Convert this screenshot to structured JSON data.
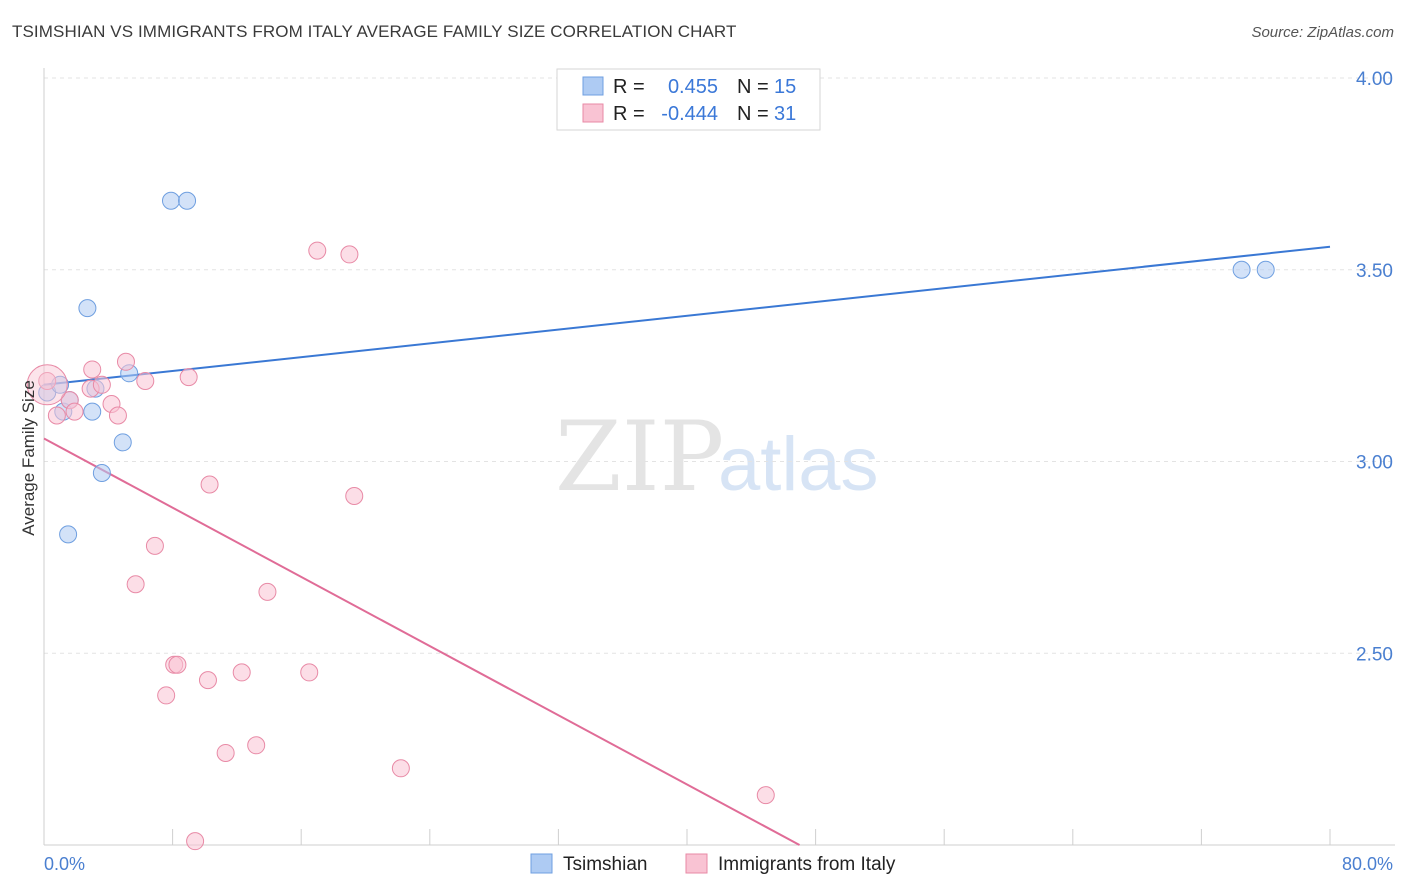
{
  "header": {
    "title": "TSIMSHIAN VS IMMIGRANTS FROM ITALY AVERAGE FAMILY SIZE CORRELATION CHART",
    "source": "Source: ZipAtlas.com"
  },
  "watermark": {
    "zip": "ZIP",
    "atlas": "atlas"
  },
  "legend_top": {
    "rows": [
      {
        "r_label": "R =",
        "r_value": "0.455",
        "n_label": "N =",
        "n_value": "15",
        "color": "#aecbf3",
        "border": "#6f9fe0"
      },
      {
        "r_label": "R =",
        "r_value": "-0.444",
        "n_label": "N =",
        "n_value": "31",
        "color": "#f9c3d3",
        "border": "#e88aa6"
      }
    ]
  },
  "chart_data": {
    "type": "scatter",
    "ylabel": "Average Family Size",
    "xlim": [
      0,
      80
    ],
    "ylim": [
      2.0,
      4.1
    ],
    "x_tick_labels": [
      "0.0%",
      "80.0%"
    ],
    "y_ticks": [
      {
        "value": 2.5,
        "label": "2.50"
      },
      {
        "value": 3.0,
        "label": "3.00"
      },
      {
        "value": 3.5,
        "label": "3.50"
      },
      {
        "value": 4.0,
        "label": "4.00"
      }
    ],
    "x_minor_ticks": [
      0,
      8,
      16,
      24,
      32,
      40,
      48,
      56,
      64,
      72,
      80
    ],
    "grid": true,
    "series": [
      {
        "name": "Tsimshian",
        "color": "#aecbf3",
        "stroke": "#6f9fe0",
        "line_color": "#3a78d4",
        "points": [
          [
            0.2,
            3.18
          ],
          [
            1.0,
            3.2
          ],
          [
            1.2,
            3.13
          ],
          [
            1.6,
            3.16
          ],
          [
            3.2,
            3.19
          ],
          [
            3.0,
            3.13
          ],
          [
            2.7,
            3.4
          ],
          [
            5.3,
            3.23
          ],
          [
            4.9,
            3.05
          ],
          [
            3.6,
            2.97
          ],
          [
            1.5,
            2.81
          ],
          [
            7.9,
            3.68
          ],
          [
            8.9,
            3.68
          ],
          [
            74.5,
            3.5
          ],
          [
            76.0,
            3.5
          ]
        ],
        "trend": [
          [
            0,
            3.2
          ],
          [
            80,
            3.56
          ]
        ]
      },
      {
        "name": "Immigrants from Italy",
        "color": "#f9c3d3",
        "stroke": "#e88aa6",
        "line_color": "#e06c97",
        "points": [
          [
            0.2,
            3.21
          ],
          [
            0.8,
            3.12
          ],
          [
            1.6,
            3.16
          ],
          [
            1.9,
            3.13
          ],
          [
            2.9,
            3.19
          ],
          [
            3.0,
            3.24
          ],
          [
            3.6,
            3.2
          ],
          [
            4.2,
            3.15
          ],
          [
            4.6,
            3.12
          ],
          [
            5.1,
            3.26
          ],
          [
            6.3,
            3.21
          ],
          [
            9.0,
            3.22
          ],
          [
            17.0,
            3.55
          ],
          [
            19.0,
            3.54
          ],
          [
            10.3,
            2.94
          ],
          [
            19.3,
            2.91
          ],
          [
            6.9,
            2.78
          ],
          [
            5.7,
            2.68
          ],
          [
            13.9,
            2.66
          ],
          [
            8.1,
            2.47
          ],
          [
            8.3,
            2.47
          ],
          [
            10.2,
            2.43
          ],
          [
            12.3,
            2.45
          ],
          [
            16.5,
            2.45
          ],
          [
            7.6,
            2.39
          ],
          [
            11.3,
            2.24
          ],
          [
            13.2,
            2.26
          ],
          [
            22.2,
            2.2
          ],
          [
            44.9,
            2.13
          ],
          [
            9.4,
            2.01
          ],
          [
            0.2,
            3.2
          ]
        ],
        "trend": [
          [
            0,
            3.06
          ],
          [
            47,
            2.0
          ]
        ]
      }
    ],
    "legend_bottom": [
      "Tsimshian",
      "Immigrants from Italy"
    ]
  }
}
